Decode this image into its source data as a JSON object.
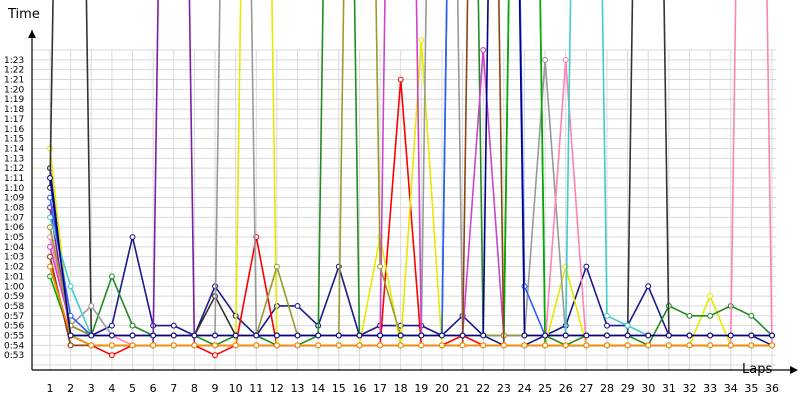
{
  "chart_data": {
    "type": "line",
    "title": "",
    "ylabel": "Time",
    "xlabel": "Laps",
    "x": [
      1,
      2,
      3,
      4,
      5,
      6,
      7,
      8,
      9,
      10,
      11,
      12,
      13,
      14,
      15,
      16,
      17,
      18,
      19,
      20,
      21,
      22,
      23,
      24,
      25,
      26,
      27,
      28,
      29,
      30,
      31,
      32,
      33,
      34,
      35,
      36
    ],
    "xlim": [
      1,
      36
    ],
    "ylim_seconds": [
      52,
      84
    ],
    "y_tick_labels": [
      "0:53",
      "0:54",
      "0:55",
      "0:56",
      "0:57",
      "0:58",
      "0:59",
      "1:00",
      "1:01",
      "1:02",
      "1:03",
      "1:04",
      "1:05",
      "1:06",
      "1:07",
      "1:08",
      "1:09",
      "1:10",
      "1:11",
      "1:12",
      "1:13",
      "1:14",
      "1:15",
      "1:16",
      "1:17",
      "1:18",
      "1:19",
      "1:20",
      "1:21",
      "1:22",
      "1:23"
    ],
    "x_tick_labels": [
      "1",
      "2",
      "3",
      "4",
      "5",
      "6",
      "7",
      "8",
      "9",
      "10",
      "11",
      "12",
      "13",
      "14",
      "15",
      "16",
      "17",
      "18",
      "19",
      "20",
      "21",
      "22",
      "23",
      "24",
      "25",
      "26",
      "27",
      "28",
      "29",
      "30",
      "31",
      "32",
      "33",
      "34",
      "35",
      "36"
    ],
    "grid": true,
    "legend": "none",
    "series": [
      {
        "color": "#1a1a8c",
        "values": [
          72,
          55,
          55,
          56,
          65,
          56,
          56,
          55,
          60,
          57,
          55,
          58,
          58,
          56,
          62,
          55,
          56,
          56,
          56,
          55,
          57,
          55,
          54,
          54,
          55,
          56,
          62,
          56,
          56,
          60,
          55,
          55,
          55,
          55,
          55,
          54
        ]
      },
      {
        "color": "#ff0000",
        "values": [
          63,
          54,
          54,
          53,
          54,
          54,
          54,
          54,
          53,
          54,
          65,
          54,
          54,
          54,
          54,
          54,
          54,
          81,
          54,
          54,
          55,
          54,
          54,
          54,
          54,
          54,
          54,
          54,
          54,
          54,
          54,
          54,
          54,
          54,
          54,
          54
        ]
      },
      {
        "color": "#e8e800",
        "values": [
          74,
          55,
          54,
          54,
          54,
          54,
          54,
          54,
          54,
          54,
          200,
          54,
          54,
          54,
          54,
          54,
          65,
          54,
          85,
          54,
          54,
          54,
          54,
          54,
          54,
          62,
          54,
          54,
          54,
          54,
          54,
          54,
          59,
          54,
          54,
          54
        ]
      },
      {
        "color": "#228b22",
        "values": [
          62,
          55,
          55,
          61,
          56,
          55,
          55,
          55,
          54,
          55,
          55,
          54,
          54,
          55,
          200,
          55,
          55,
          55,
          55,
          55,
          200,
          55,
          55,
          200,
          55,
          54,
          55,
          55,
          55,
          54,
          58,
          57,
          57,
          58,
          57,
          55
        ]
      },
      {
        "color": "#7a1fa2",
        "values": [
          68,
          55,
          54,
          54,
          54,
          54,
          200,
          54,
          54,
          54,
          54,
          54,
          54,
          54,
          54,
          54,
          54,
          54,
          54,
          54,
          54,
          54,
          54,
          54,
          54,
          54,
          54,
          54,
          54,
          54,
          54,
          54,
          54,
          54,
          54,
          54
        ]
      },
      {
        "color": "#333333",
        "values": [
          70,
          200,
          55,
          55,
          55,
          55,
          55,
          55,
          59,
          55,
          55,
          55,
          55,
          55,
          55,
          55,
          55,
          55,
          55,
          55,
          55,
          55,
          55,
          55,
          55,
          55,
          55,
          55,
          55,
          200,
          55,
          55,
          55,
          55,
          55,
          55
        ]
      },
      {
        "color": "#999999",
        "values": [
          66,
          56,
          58,
          55,
          55,
          55,
          55,
          55,
          55,
          200,
          55,
          55,
          55,
          55,
          55,
          55,
          55,
          55,
          55,
          200,
          55,
          55,
          55,
          55,
          83,
          55,
          55,
          55,
          55,
          55,
          55,
          55,
          55,
          55,
          55,
          55
        ]
      },
      {
        "color": "#ff82b4",
        "values": [
          65,
          56,
          55,
          55,
          54,
          54,
          54,
          54,
          54,
          54,
          54,
          54,
          54,
          54,
          54,
          54,
          54,
          54,
          54,
          54,
          54,
          54,
          54,
          54,
          54,
          83,
          54,
          54,
          54,
          54,
          54,
          54,
          54,
          54,
          200,
          54
        ]
      },
      {
        "color": "#40cccc",
        "values": [
          67,
          60,
          55,
          55,
          55,
          55,
          55,
          55,
          55,
          55,
          55,
          55,
          55,
          55,
          55,
          55,
          55,
          55,
          55,
          55,
          55,
          55,
          55,
          55,
          55,
          55,
          200,
          57,
          56,
          55,
          55,
          55,
          55,
          55,
          55,
          55
        ]
      },
      {
        "color": "#2b5cff",
        "values": [
          69,
          57,
          55,
          55,
          55,
          55,
          55,
          55,
          55,
          55,
          55,
          55,
          55,
          55,
          55,
          55,
          55,
          55,
          55,
          55,
          200,
          200,
          200,
          60,
          55,
          55,
          55,
          55,
          55,
          55,
          55,
          55,
          55,
          55,
          55,
          55
        ]
      },
      {
        "color": "#cc44cc",
        "values": [
          64,
          56,
          55,
          55,
          55,
          55,
          55,
          55,
          55,
          55,
          55,
          55,
          55,
          55,
          55,
          55,
          55,
          200,
          55,
          55,
          55,
          84,
          55,
          55,
          55,
          55,
          55,
          55,
          55,
          55,
          55,
          55,
          55,
          55,
          55,
          55
        ]
      },
      {
        "color": "#00aa00",
        "values": [
          61,
          55,
          54,
          54,
          54,
          54,
          54,
          54,
          54,
          54,
          54,
          54,
          54,
          54,
          54,
          54,
          54,
          54,
          54,
          54,
          54,
          54,
          54,
          200,
          54,
          54,
          54,
          54,
          54,
          54,
          54,
          54,
          54,
          54,
          54,
          54
        ]
      },
      {
        "color": "#9a9a30",
        "values": [
          66,
          56,
          55,
          55,
          55,
          55,
          55,
          55,
          55,
          55,
          55,
          62,
          55,
          55,
          55,
          200,
          62,
          55,
          55,
          55,
          55,
          55,
          55,
          55,
          55,
          55,
          55,
          55,
          55,
          55,
          55,
          55,
          55,
          55,
          55,
          55
        ]
      },
      {
        "color": "#8b4513",
        "values": [
          63,
          54,
          54,
          54,
          54,
          54,
          54,
          54,
          54,
          54,
          54,
          54,
          54,
          54,
          54,
          54,
          54,
          54,
          54,
          54,
          54,
          200,
          54,
          54,
          54,
          54,
          54,
          54,
          54,
          54,
          54,
          54,
          54,
          54,
          54,
          54
        ]
      },
      {
        "color": "#ff8c00",
        "values": [
          62,
          55,
          54,
          54,
          54,
          54,
          54,
          54,
          54,
          54,
          54,
          54,
          54,
          54,
          54,
          54,
          54,
          54,
          54,
          54,
          54,
          54,
          54,
          54,
          54,
          54,
          54,
          54,
          54,
          54,
          54,
          54,
          54,
          54,
          54,
          54
        ]
      },
      {
        "color": "#00008b",
        "values": [
          71,
          55,
          55,
          55,
          55,
          55,
          55,
          55,
          55,
          55,
          55,
          55,
          55,
          55,
          55,
          55,
          55,
          55,
          55,
          55,
          55,
          55,
          200,
          55,
          55,
          55,
          55,
          55,
          55,
          55,
          55,
          55,
          55,
          55,
          55,
          55
        ]
      }
    ]
  }
}
